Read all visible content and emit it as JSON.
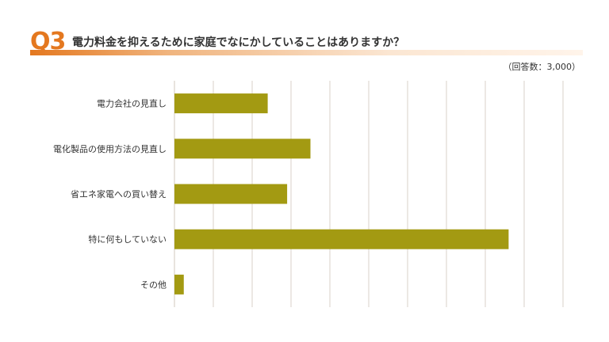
{
  "header": {
    "question_number": "Q3",
    "question_text": "電力料金を抑えるために家庭でなにかしていることはありますか？",
    "respondents": "（回答数：3,000）"
  },
  "colors": {
    "accent": "#e4781f",
    "bar": "#a39a12",
    "grid": "#d9d2c8"
  },
  "chart_data": {
    "type": "bar",
    "orientation": "horizontal",
    "categories": [
      "電力会社の見直し",
      "電化製品の使用方法の見直し",
      "省エネ家電への買い替え",
      "特に何もしていない",
      "その他"
    ],
    "values": [
      12,
      17.5,
      14.5,
      43,
      1.2
    ],
    "xlim": [
      0,
      50
    ],
    "grid": true,
    "legend": "none"
  }
}
